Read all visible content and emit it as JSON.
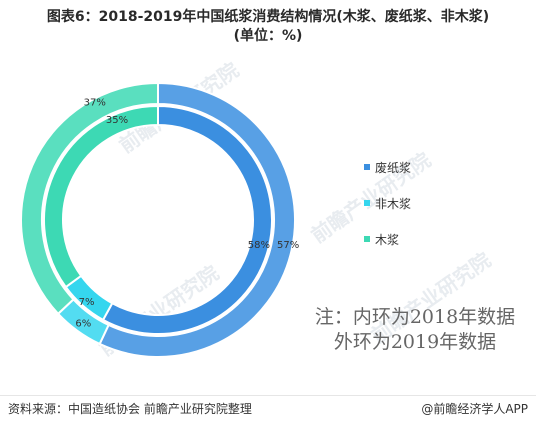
{
  "title_line1": "图表6：2018-2019年中国纸浆消费结构情况(木浆、废纸浆、非木浆)",
  "title_line2": "(单位：%)",
  "chart_data": {
    "type": "pie",
    "variant": "nested-donut",
    "categories": [
      "废纸浆",
      "非木浆",
      "木浆"
    ],
    "colors": [
      "#3b8fe0",
      "#35d6ee",
      "#3dd9b4"
    ],
    "series": [
      {
        "name": "2018年",
        "ring": "inner",
        "values": [
          58,
          7,
          35
        ]
      },
      {
        "name": "2019年",
        "ring": "outer",
        "values": [
          57,
          6,
          37
        ]
      }
    ],
    "legend_position": "right"
  },
  "legend": [
    {
      "label": "废纸浆",
      "color": "#3b8fe0"
    },
    {
      "label": "非木浆",
      "color": "#35d6ee"
    },
    {
      "label": "木浆",
      "color": "#3dd9b4"
    }
  ],
  "note": {
    "line1": "注：内环为2018年数据",
    "line2": "外环为2019年数据"
  },
  "source": "资料来源：中国造纸协会 前瞻产业研究院整理",
  "footer_brand": "@前瞻经济学人APP",
  "watermark": "前瞻产业研究院"
}
